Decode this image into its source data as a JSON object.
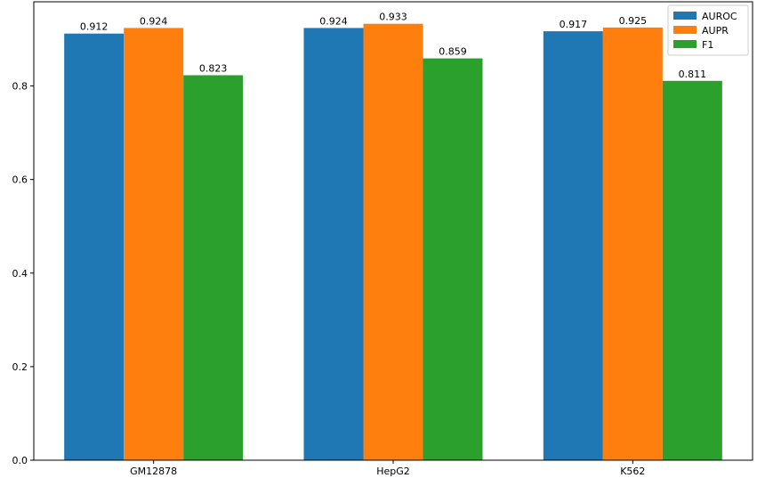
{
  "chart_data": {
    "type": "bar",
    "title": "",
    "xlabel": "",
    "ylabel": "",
    "categories": [
      "GM12878",
      "HepG2",
      "K562"
    ],
    "series": [
      {
        "name": "AUROC",
        "values": [
          0.912,
          0.924,
          0.917
        ],
        "color": "#1f77b4"
      },
      {
        "name": "AUPR",
        "values": [
          0.924,
          0.933,
          0.925
        ],
        "color": "#ff7f0e"
      },
      {
        "name": "F1",
        "values": [
          0.823,
          0.859,
          0.811
        ],
        "color": "#2ca02c"
      }
    ],
    "value_labels": [
      [
        "0.912",
        "0.924",
        "0.917"
      ],
      [
        "0.924",
        "0.933",
        "0.925"
      ],
      [
        "0.823",
        "0.859",
        "0.811"
      ]
    ],
    "ylim": [
      0,
      0.98
    ],
    "yticks": [
      0.0,
      0.2,
      0.4,
      0.6,
      0.8
    ],
    "ytick_labels": [
      "0.0",
      "0.2",
      "0.4",
      "0.6",
      "0.8"
    ],
    "grid": false,
    "legend": "top-right"
  }
}
